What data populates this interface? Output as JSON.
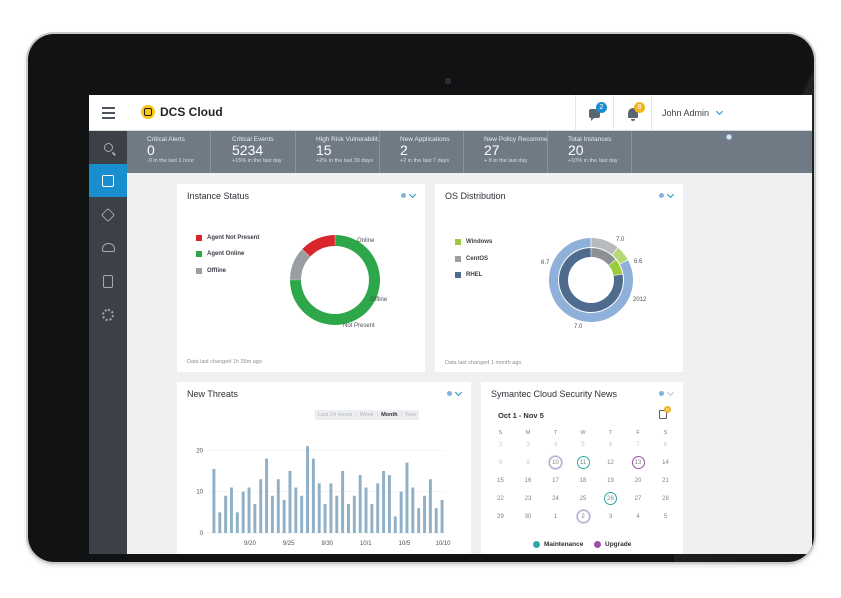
{
  "app": {
    "name": "DCS Cloud",
    "user": "John Admin",
    "chat_badge": "2",
    "alert_badge": "8"
  },
  "sidebar": {
    "items": [
      {
        "icon": "search-icon"
      },
      {
        "icon": "dashboard-icon",
        "active": true
      },
      {
        "icon": "alert-icon"
      },
      {
        "icon": "cloud-upload-icon"
      },
      {
        "icon": "reports-icon"
      },
      {
        "icon": "settings-gear-icon"
      }
    ]
  },
  "stats": [
    {
      "title": "Critical Alerts",
      "value": "0",
      "sub": "-0 in the last 1 hour"
    },
    {
      "title": "Critical Events",
      "value": "5234",
      "sub": "+15% in the last day"
    },
    {
      "title": "High Risk Vulnerabilit...",
      "value": "15",
      "sub": "+2% in the last 30 days"
    },
    {
      "title": "New Applications",
      "value": "2",
      "sub": "+2 in the last 7 days"
    },
    {
      "title": "New Policy Recomme...",
      "value": "27",
      "sub": "+ 8 in the last day"
    },
    {
      "title": "Total Instances",
      "value": "20",
      "sub": "+10% in the last day"
    }
  ],
  "instance_status": {
    "title": "Instance Status",
    "footer": "Data last changed 1h 35m ago",
    "legend": [
      {
        "label": "Agent Not Present",
        "color": "#d9262c"
      },
      {
        "label": "Agent Online",
        "color": "#2ea64a"
      },
      {
        "label": "Offline",
        "color": "#9a9ea3"
      }
    ],
    "labels": {
      "online": "Online",
      "offline": "Offline",
      "not_present": "Not Present"
    }
  },
  "os_distribution": {
    "title": "OS Distribution",
    "footer": "Data last changed 1 month ago",
    "legend": [
      {
        "label": "Windows",
        "color": "#9ccc3c"
      },
      {
        "label": "CentOS",
        "color": "#9a9ea3"
      },
      {
        "label": "RHEL",
        "color": "#4f6c8f"
      }
    ],
    "labels": {
      "top": "7.0",
      "right_top": "6.6",
      "right": "2012",
      "bottom": "7.0",
      "left": "6.7"
    }
  },
  "new_threats": {
    "title": "New Threats",
    "tabs": [
      "Last 24 Hours",
      "Week",
      "Month",
      "Year"
    ],
    "active_tab": "Month"
  },
  "news": {
    "title": "Symantec Cloud Security News",
    "range": "Oct 1 - Nov 5",
    "doc_badge": "8",
    "weekdays": [
      "S",
      "M",
      "T",
      "W",
      "T",
      "F",
      "S"
    ],
    "weeks": [
      [
        "2",
        "3",
        "4",
        "5",
        "6",
        "7",
        "8"
      ],
      [
        "9",
        "9",
        "10",
        "11",
        "12",
        "13",
        "14"
      ],
      [
        "15",
        "16",
        "17",
        "18",
        "19",
        "20",
        "21"
      ],
      [
        "22",
        "23",
        "24",
        "25",
        "26",
        "27",
        "28"
      ],
      [
        "29",
        "30",
        "1",
        "2",
        "3",
        "4",
        "5"
      ]
    ],
    "legend": [
      {
        "label": "Maintenance",
        "color": "#2fa7a9"
      },
      {
        "label": "Upgrade",
        "color": "#9b4ea6"
      }
    ]
  },
  "chart_data": [
    {
      "type": "pie",
      "title": "Instance Status",
      "categories": [
        "Online",
        "Offline",
        "Not Present"
      ],
      "values": [
        75,
        12,
        13
      ]
    },
    {
      "type": "pie",
      "title": "OS Distribution",
      "series": [
        {
          "name": "Outer",
          "categories": [
            "CentOS",
            "Windows",
            "RHEL"
          ],
          "values": [
            11,
            6,
            83
          ],
          "labels": [
            "7.0",
            "6.6",
            "7.0"
          ]
        },
        {
          "name": "Inner",
          "categories": [
            "CentOS",
            "Windows",
            "RHEL"
          ],
          "values": [
            14,
            8,
            78
          ],
          "labels": [
            "6.7",
            "2012",
            ""
          ]
        }
      ]
    },
    {
      "type": "bar",
      "title": "New Threats",
      "xlabel": "",
      "ylabel": "",
      "ylim": [
        0,
        22
      ],
      "yticks": [
        "0",
        "10",
        "20"
      ],
      "xticks": [
        "9/20",
        "9/25",
        "9/30",
        "10/1",
        "10/5",
        "10/10"
      ],
      "values": [
        15.5,
        5,
        9,
        11,
        5,
        10,
        11,
        7,
        13,
        18,
        9,
        13,
        8,
        15,
        11,
        9,
        21,
        18,
        12,
        7,
        12,
        9,
        15,
        7,
        9,
        14,
        11,
        7,
        12,
        15,
        14,
        4,
        10,
        17,
        11,
        6,
        9,
        13,
        6,
        8
      ]
    }
  ]
}
